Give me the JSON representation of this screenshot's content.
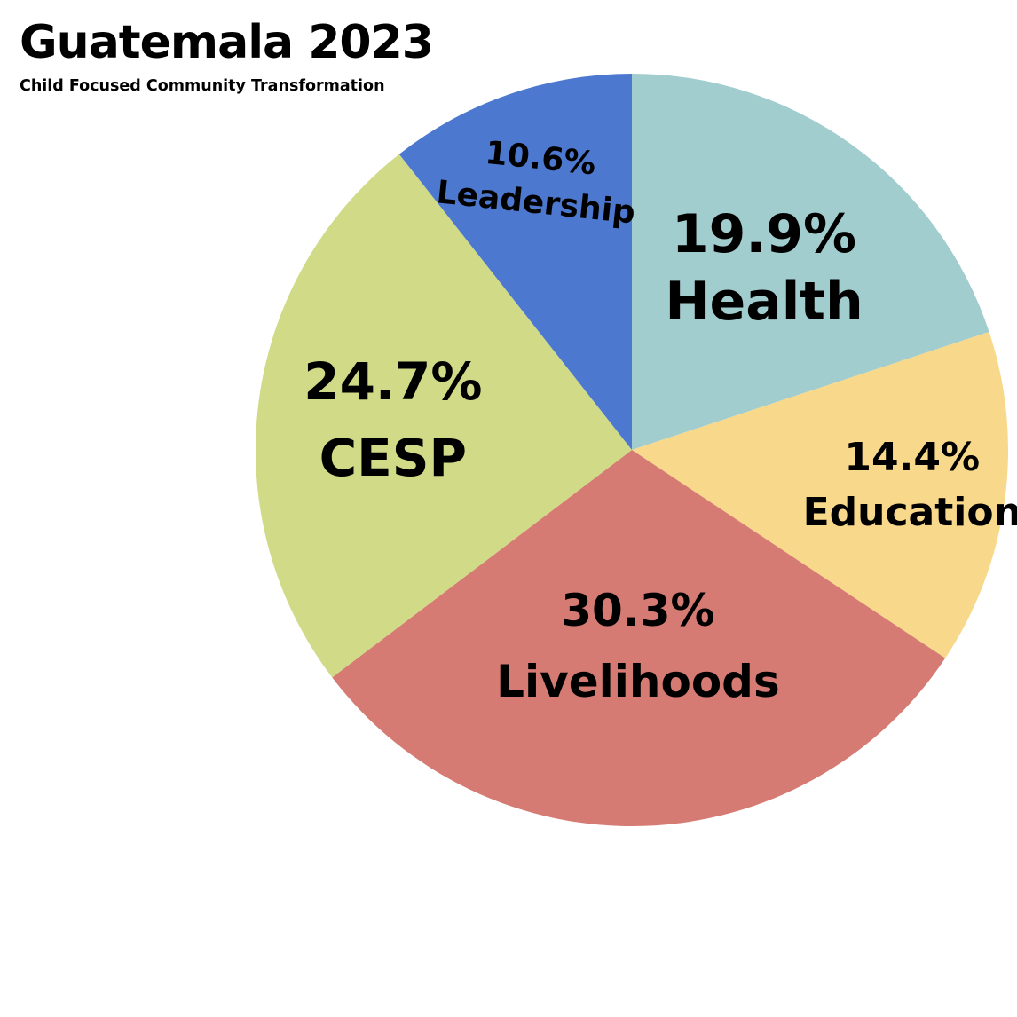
{
  "chart_data": {
    "type": "pie",
    "title": "Guatemala 2023",
    "subtitle": "Child Focused Community Transformation",
    "slices": [
      {
        "label": "Health",
        "value": 19.9,
        "value_label": "19.9%",
        "color": "#a2cdcf"
      },
      {
        "label": "Education",
        "value": 14.4,
        "value_label": "14.4%",
        "color": "#f8d88a"
      },
      {
        "label": "Livelihoods",
        "value": 30.3,
        "value_label": "30.3%",
        "color": "#d67b73"
      },
      {
        "label": "CESP",
        "value": 24.7,
        "value_label": "24.7%",
        "color": "#d1da86"
      },
      {
        "label": "Leadership",
        "value": 10.6,
        "value_label": "10.6%",
        "color": "#4d78d0"
      }
    ],
    "start_angle": "12 o'clock",
    "direction": "clockwise",
    "legend": "none"
  }
}
